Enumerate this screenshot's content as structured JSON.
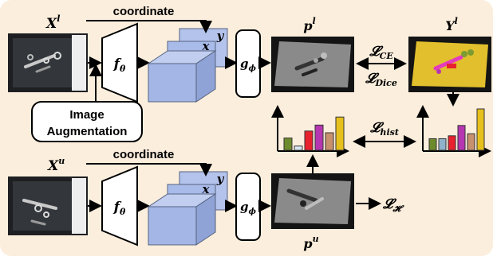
{
  "labels": {
    "x_labeled": "X^l",
    "x_unlabeled": "X^u",
    "coordinate_top": "coordinate",
    "coordinate_bottom": "coordinate",
    "f_theta_top": "f_θ",
    "f_theta_bottom": "f_θ",
    "g_phi_top": "g_ϕ",
    "g_phi_bottom": "g_ϕ",
    "p_l": "p^l",
    "p_u": "p^u",
    "y_l": "Y^l",
    "loss_ce": "L_CE",
    "loss_dice": "L_Dice",
    "loss_hist": "L_hist",
    "loss_entropy": "L_H",
    "aug_line1": "Image",
    "aug_line2": "Augmentation",
    "axis_x": "x",
    "axis_y": "y"
  },
  "colors": {
    "background": "#fbeedd",
    "feature_block": "#a9bbe8",
    "label_map_bg": "#e2bf2c",
    "pred_map_bg": "#8a8a8a"
  },
  "histograms": {
    "pred": {
      "values": [
        0.35,
        0.12,
        0.55,
        0.72,
        0.5,
        0.95
      ],
      "colors": [
        "#6e8b2c",
        "#d8e6f2",
        "#e8212e",
        "#b536b0",
        "#c8916e",
        "#e6c01c"
      ]
    },
    "label": {
      "values": [
        0.28,
        0.28,
        0.35,
        0.6,
        0.4,
        1.0
      ],
      "colors": [
        "#6e8b2c",
        "#8fb1c9",
        "#e8212e",
        "#b536b0",
        "#c8916e",
        "#e6c01c"
      ]
    }
  }
}
